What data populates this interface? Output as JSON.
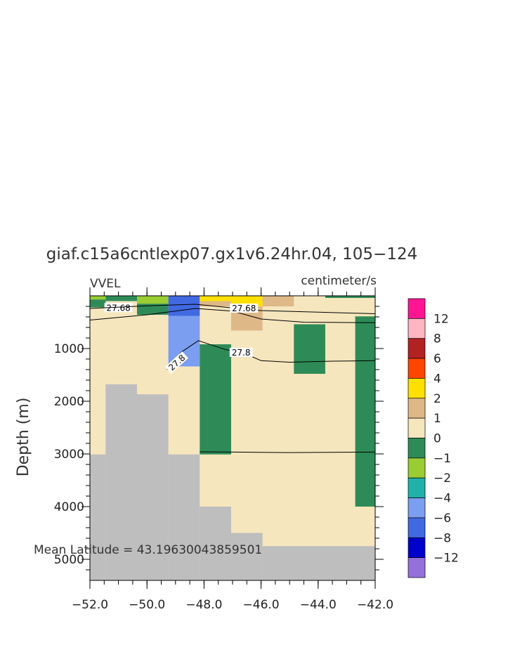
{
  "chart_data": {
    "type": "heatmap",
    "title": "giaf.c15a6cntlexp07.gx1v6.24hr.04, 105−124",
    "left_label": "VVEL",
    "right_label": "centimeter/s",
    "ylabel": "Depth (m)",
    "xlabel": "",
    "annotation": "Mean Latitude = 43.19630043859501",
    "xlim": [
      -52,
      -42
    ],
    "ylim": [
      5400,
      0
    ],
    "x_ticks": [
      {
        "value": -52,
        "label": "−52.0"
      },
      {
        "value": -50,
        "label": "−50.0"
      },
      {
        "value": -48,
        "label": "−48.0"
      },
      {
        "value": -46,
        "label": "−46.0"
      },
      {
        "value": -44,
        "label": "−44.0"
      },
      {
        "value": -42,
        "label": "−42.0"
      }
    ],
    "y_ticks": [
      {
        "value": 1000,
        "label": "1000"
      },
      {
        "value": 2000,
        "label": "2000"
      },
      {
        "value": 3000,
        "label": "3000"
      },
      {
        "value": 4000,
        "label": "4000"
      },
      {
        "value": 5000,
        "label": "5000"
      }
    ],
    "background_color": "#F5E6BE",
    "land_color": "#BEBEBE",
    "land": [
      {
        "x0": -52.0,
        "x1": -51.45,
        "bottom": 3010
      },
      {
        "x0": -51.45,
        "x1": -50.35,
        "bottom": 1680
      },
      {
        "x0": -50.35,
        "x1": -49.25,
        "bottom": 1870
      },
      {
        "x0": -49.25,
        "x1": -48.15,
        "bottom": 3010
      },
      {
        "x0": -48.15,
        "x1": -47.05,
        "bottom": 4000
      },
      {
        "x0": -47.05,
        "x1": -45.95,
        "bottom": 4500
      },
      {
        "x0": -45.95,
        "x1": -42.0,
        "bottom": 4750
      }
    ],
    "cells": [
      {
        "x0": -52.0,
        "x1": -51.45,
        "d0": 0,
        "d1": 70,
        "color": "#9ACD32"
      },
      {
        "x0": -52.0,
        "x1": -51.45,
        "d0": 70,
        "d1": 220,
        "color": "#2E8B57"
      },
      {
        "x0": -51.45,
        "x1": -50.35,
        "d0": 0,
        "d1": 100,
        "color": "#2E8B57"
      },
      {
        "x0": -50.35,
        "x1": -49.25,
        "d0": 0,
        "d1": 150,
        "color": "#9ACD32"
      },
      {
        "x0": -50.35,
        "x1": -49.25,
        "d0": 150,
        "d1": 360,
        "color": "#2E8B57"
      },
      {
        "x0": -49.25,
        "x1": -48.15,
        "d0": 0,
        "d1": 380,
        "color": "#4169E1"
      },
      {
        "x0": -49.25,
        "x1": -48.15,
        "d0": 380,
        "d1": 1340,
        "color": "#7B9EF0"
      },
      {
        "x0": -48.15,
        "x1": -47.05,
        "d0": 0,
        "d1": 100,
        "color": "#FFE000"
      },
      {
        "x0": -48.15,
        "x1": -47.05,
        "d0": 100,
        "d1": 200,
        "color": "#DEB887"
      },
      {
        "x0": -48.15,
        "x1": -47.05,
        "d0": 920,
        "d1": 3010,
        "color": "#2E8B57"
      },
      {
        "x0": -47.05,
        "x1": -45.95,
        "d0": 0,
        "d1": 200,
        "color": "#FFE000"
      },
      {
        "x0": -47.05,
        "x1": -45.95,
        "d0": 200,
        "d1": 660,
        "color": "#DEB887"
      },
      {
        "x0": -45.95,
        "x1": -44.85,
        "d0": 0,
        "d1": 200,
        "color": "#DEB887"
      },
      {
        "x0": -44.85,
        "x1": -43.75,
        "d0": 540,
        "d1": 1480,
        "color": "#2E8B57"
      },
      {
        "x0": -43.75,
        "x1": -42.0,
        "d0": 0,
        "d1": 40,
        "color": "#2E8B57"
      },
      {
        "x0": -42.7,
        "x1": -42.0,
        "d0": 390,
        "d1": 4000,
        "color": "#2E8B57"
      }
    ],
    "contours": [
      {
        "label": "27.68",
        "label_at": [
          -51.0,
          230
        ],
        "points": [
          [
            -52.0,
            460
          ],
          [
            -50.0,
            360
          ],
          [
            -48.3,
            240
          ],
          [
            -47.0,
            290
          ],
          [
            -46.0,
            440
          ],
          [
            -44.5,
            500
          ],
          [
            -42.0,
            510
          ]
        ]
      },
      {
        "label": "27.68",
        "label_at": [
          -46.6,
          240
        ],
        "points": [
          [
            -52.0,
            240
          ],
          [
            -50.0,
            190
          ],
          [
            -48.3,
            160
          ],
          [
            -47.0,
            230
          ],
          [
            -46.0,
            280
          ],
          [
            -44.0,
            310
          ],
          [
            -42.0,
            340
          ]
        ]
      },
      {
        "label": "27.8",
        "label_at": [
          -48.95,
          1270
        ],
        "points": [
          [
            -49.3,
            1400
          ],
          [
            -48.8,
            1070
          ],
          [
            -48.2,
            850
          ],
          [
            -47.3,
            1010
          ],
          [
            -46.5,
            1110
          ],
          [
            -46.0,
            1230
          ],
          [
            -45.0,
            1260
          ],
          [
            -43.5,
            1240
          ],
          [
            -42.0,
            1230
          ]
        ]
      },
      {
        "label": "27.8",
        "label_at": [
          -46.7,
          1080
        ],
        "points": []
      },
      {
        "label": "",
        "label_at": null,
        "points": [
          [
            -48.15,
            2960
          ],
          [
            -47.0,
            2965
          ],
          [
            -45.0,
            2975
          ],
          [
            -42.0,
            2965
          ]
        ]
      }
    ],
    "legend": {
      "position": "right",
      "labels": [
        "12",
        "8",
        "6",
        "4",
        "2",
        "1",
        "0",
        "−1",
        "−2",
        "−4",
        "−6",
        "−8",
        "−12"
      ],
      "colors": [
        "#FF1493",
        "#FFB6C1",
        "#B22222",
        "#FF4500",
        "#FFE000",
        "#DEB887",
        "#F5E6BE",
        "#2E8B57",
        "#9ACD32",
        "#20B2AA",
        "#7B9EF0",
        "#4169E1",
        "#0000CD",
        "#9370DB"
      ]
    }
  }
}
